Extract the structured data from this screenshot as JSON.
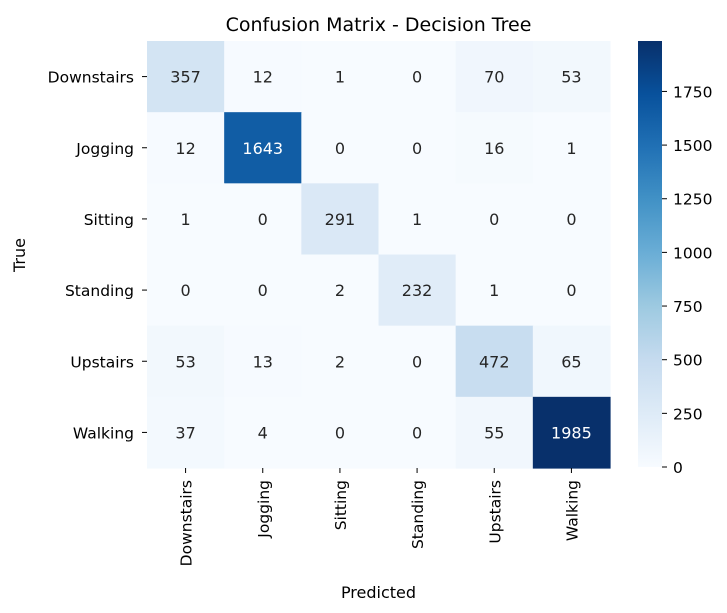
{
  "chart_data": {
    "type": "heatmap",
    "title": "Confusion Matrix - Decision Tree",
    "xlabel": "Predicted",
    "ylabel": "True",
    "x_categories": [
      "Downstairs",
      "Jogging",
      "Sitting",
      "Standing",
      "Upstairs",
      "Walking"
    ],
    "y_categories": [
      "Downstairs",
      "Jogging",
      "Sitting",
      "Standing",
      "Upstairs",
      "Walking"
    ],
    "values": [
      [
        357,
        12,
        1,
        0,
        70,
        53
      ],
      [
        12,
        1643,
        0,
        0,
        16,
        1
      ],
      [
        1,
        0,
        291,
        1,
        0,
        0
      ],
      [
        0,
        0,
        2,
        232,
        1,
        0
      ],
      [
        53,
        13,
        2,
        0,
        472,
        65
      ],
      [
        37,
        4,
        0,
        0,
        55,
        1985
      ]
    ],
    "colormap": "Blues",
    "color_range": [
      0,
      1985
    ],
    "colorbar_ticks": [
      0,
      250,
      500,
      750,
      1000,
      1250,
      1500,
      1750
    ],
    "grid": false,
    "legend": "colorbar-right"
  }
}
